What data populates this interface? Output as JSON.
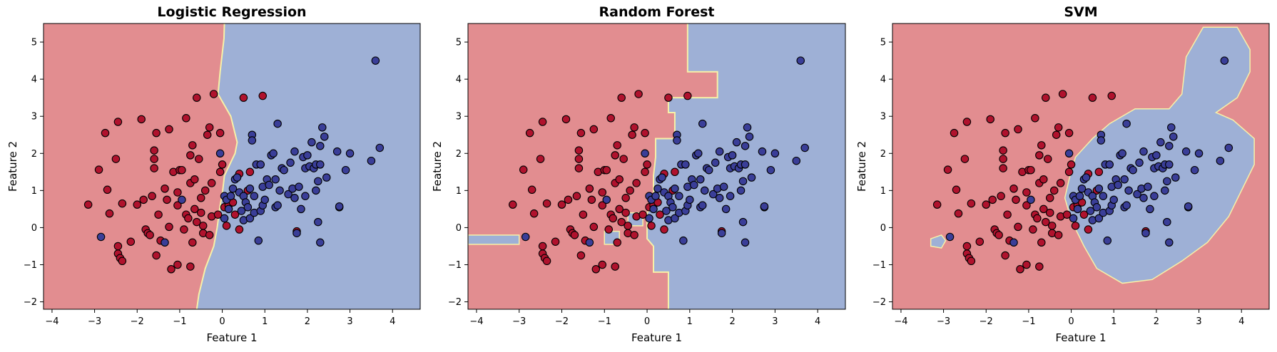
{
  "colors": {
    "class_0_region": "#e28d90",
    "class_1_region": "#9eb0d6",
    "class_0_point": "#b0122d",
    "class_1_point": "#3a3e98",
    "boundary_tint": "#f7f1a8",
    "point_edge": "#000000"
  },
  "chart_data": [
    {
      "type": "scatter",
      "title": "Logistic Regression",
      "xlabel": "Feature 1",
      "ylabel": "Feature 2",
      "xlim": [
        -4.2,
        4.65
      ],
      "ylim": [
        -2.2,
        5.5
      ],
      "xticks": [
        -4,
        -3,
        -2,
        -1,
        0,
        1,
        2,
        3,
        4
      ],
      "yticks": [
        -2,
        -1,
        0,
        1,
        2,
        3,
        4,
        5
      ],
      "grid": false,
      "boundary": [
        [
          0.05,
          5.5
        ],
        [
          0.04,
          5.1
        ],
        [
          -0.05,
          4.2
        ],
        [
          -0.1,
          3.6
        ],
        [
          0.2,
          3.0
        ],
        [
          0.35,
          2.3
        ],
        [
          0.3,
          2.0
        ],
        [
          0.05,
          1.4
        ],
        [
          0.0,
          0.9
        ],
        [
          -0.05,
          0.6
        ],
        [
          -0.12,
          0.0
        ],
        [
          -0.2,
          -0.5
        ],
        [
          -0.4,
          -1.1
        ],
        [
          -0.55,
          -1.8
        ],
        [
          -0.6,
          -2.2
        ]
      ],
      "blue_islands": []
    },
    {
      "type": "scatter",
      "title": "Random Forest",
      "xlabel": "Feature 1",
      "ylabel": "Feature 2",
      "xlim": [
        -4.2,
        4.65
      ],
      "ylim": [
        -2.2,
        5.5
      ],
      "xticks": [
        -4,
        -3,
        -2,
        -1,
        0,
        1,
        2,
        3,
        4
      ],
      "yticks": [
        -2,
        -1,
        0,
        1,
        2,
        3,
        4,
        5
      ],
      "grid": false,
      "boundary": [
        [
          0.95,
          5.5
        ],
        [
          0.95,
          4.2
        ],
        [
          1.65,
          4.2
        ],
        [
          1.65,
          3.5
        ],
        [
          0.5,
          3.5
        ],
        [
          0.5,
          3.1
        ],
        [
          0.65,
          3.1
        ],
        [
          0.65,
          2.4
        ],
        [
          0.2,
          2.4
        ],
        [
          0.2,
          1.9
        ],
        [
          0.15,
          1.4
        ],
        [
          0.15,
          0.6
        ],
        [
          0.0,
          0.4
        ],
        [
          0.0,
          -0.3
        ],
        [
          0.15,
          -0.5
        ],
        [
          0.15,
          -1.2
        ],
        [
          0.5,
          -1.2
        ],
        [
          0.5,
          -2.2
        ]
      ],
      "blue_islands": [
        [
          [
            -4.2,
            -0.2
          ],
          [
            -3.0,
            -0.2
          ],
          [
            -3.0,
            -0.45
          ],
          [
            -4.2,
            -0.45
          ]
        ],
        [
          [
            -1.0,
            -0.1
          ],
          [
            -0.65,
            -0.1
          ],
          [
            -0.65,
            -0.45
          ],
          [
            -1.0,
            -0.45
          ]
        ],
        [
          [
            -0.45,
            0.4
          ],
          [
            -0.1,
            0.4
          ],
          [
            -0.1,
            0.05
          ],
          [
            -0.45,
            0.05
          ]
        ]
      ]
    },
    {
      "type": "scatter",
      "title": "SVM",
      "xlabel": "Feature 1",
      "ylabel": "Feature 2",
      "xlim": [
        -4.2,
        4.65
      ],
      "ylim": [
        -2.2,
        5.5
      ],
      "xticks": [
        -4,
        -3,
        -2,
        -1,
        0,
        1,
        2,
        3,
        4
      ],
      "yticks": [
        -2,
        -1,
        0,
        1,
        2,
        3,
        4,
        5
      ],
      "grid": false,
      "boundary": [],
      "blue_islands": [
        [
          [
            0.1,
            1.9
          ],
          [
            0.5,
            2.4
          ],
          [
            0.9,
            2.8
          ],
          [
            1.5,
            3.2
          ],
          [
            2.3,
            3.2
          ],
          [
            2.6,
            3.6
          ],
          [
            2.7,
            4.6
          ],
          [
            3.1,
            5.4
          ],
          [
            3.9,
            5.4
          ],
          [
            4.2,
            4.8
          ],
          [
            4.2,
            4.2
          ],
          [
            3.9,
            3.5
          ],
          [
            3.4,
            3.1
          ],
          [
            3.8,
            2.9
          ],
          [
            4.3,
            2.4
          ],
          [
            4.3,
            1.7
          ],
          [
            4.0,
            1.0
          ],
          [
            3.7,
            0.3
          ],
          [
            3.2,
            -0.4
          ],
          [
            2.6,
            -0.9
          ],
          [
            1.9,
            -1.4
          ],
          [
            1.2,
            -1.5
          ],
          [
            0.6,
            -1.1
          ],
          [
            0.3,
            -0.5
          ],
          [
            0.0,
            0.2
          ],
          [
            -0.15,
            0.8
          ],
          [
            -0.05,
            1.3
          ]
        ],
        [
          [
            -3.3,
            -0.3
          ],
          [
            -3.05,
            -0.2
          ],
          [
            -2.95,
            -0.35
          ],
          [
            -3.05,
            -0.55
          ],
          [
            -3.3,
            -0.5
          ]
        ]
      ]
    }
  ],
  "points": {
    "class_0": [
      [
        -3.15,
        0.62
      ],
      [
        -2.9,
        1.56
      ],
      [
        -2.75,
        2.55
      ],
      [
        -2.7,
        1.02
      ],
      [
        -2.65,
        0.38
      ],
      [
        -2.5,
        1.85
      ],
      [
        -2.45,
        2.85
      ],
      [
        -2.35,
        0.65
      ],
      [
        -2.45,
        -0.7
      ],
      [
        -2.4,
        -0.82
      ],
      [
        -2.35,
        -0.9
      ],
      [
        -2.45,
        -0.5
      ],
      [
        -2.15,
        -0.38
      ],
      [
        -2.0,
        0.62
      ],
      [
        -1.9,
        2.92
      ],
      [
        -1.85,
        0.75
      ],
      [
        -1.8,
        -0.05
      ],
      [
        -1.75,
        -0.15
      ],
      [
        -1.7,
        -0.2
      ],
      [
        -1.65,
        0.85
      ],
      [
        -1.6,
        1.6
      ],
      [
        -1.6,
        2.08
      ],
      [
        -1.6,
        1.85
      ],
      [
        -1.55,
        2.55
      ],
      [
        -1.55,
        -0.75
      ],
      [
        -1.5,
        0.35
      ],
      [
        -1.45,
        -0.35
      ],
      [
        -1.35,
        1.05
      ],
      [
        -1.3,
        0.75
      ],
      [
        -1.25,
        0.02
      ],
      [
        -1.25,
        2.65
      ],
      [
        -1.2,
        -1.12
      ],
      [
        -1.15,
        1.5
      ],
      [
        -1.05,
        0.6
      ],
      [
        -1.05,
        0.95
      ],
      [
        -1.05,
        -1.0
      ],
      [
        -1.0,
        1.55
      ],
      [
        -0.95,
        1.55
      ],
      [
        -0.9,
        -0.05
      ],
      [
        -0.85,
        2.95
      ],
      [
        -0.85,
        0.35
      ],
      [
        -0.8,
        0.25
      ],
      [
        -0.75,
        -1.05
      ],
      [
        -0.75,
        1.2
      ],
      [
        -0.75,
        1.95
      ],
      [
        -0.7,
        2.22
      ],
      [
        -0.7,
        -0.4
      ],
      [
        -0.65,
        0.5
      ],
      [
        -0.65,
        1.3
      ],
      [
        -0.6,
        0.15
      ],
      [
        -0.6,
        3.5
      ],
      [
        -0.55,
        1.85
      ],
      [
        -0.5,
        0.8
      ],
      [
        -0.5,
        0.4
      ],
      [
        -0.45,
        0.05
      ],
      [
        -0.45,
        -0.15
      ],
      [
        -0.4,
        1.0
      ],
      [
        -0.35,
        2.5
      ],
      [
        -0.3,
        2.7
      ],
      [
        -0.3,
        -0.2
      ],
      [
        -0.2,
        3.6
      ],
      [
        -0.25,
        1.2
      ],
      [
        -0.25,
        0.3
      ],
      [
        -0.1,
        0.35
      ],
      [
        -0.05,
        1.5
      ],
      [
        0.0,
        1.7
      ],
      [
        -0.05,
        2.55
      ],
      [
        0.05,
        0.55
      ],
      [
        0.1,
        0.05
      ],
      [
        0.15,
        0.6
      ],
      [
        0.25,
        0.68
      ],
      [
        0.3,
        0.35
      ],
      [
        0.4,
        1.45
      ],
      [
        0.4,
        -0.05
      ],
      [
        0.5,
        3.5
      ],
      [
        0.6,
        1.0
      ],
      [
        0.65,
        1.5
      ],
      [
        0.95,
        3.55
      ],
      [
        1.75,
        -0.1
      ]
    ],
    "class_1": [
      [
        -2.85,
        -0.25
      ],
      [
        -1.35,
        -0.4
      ],
      [
        -0.95,
        0.75
      ],
      [
        -0.05,
        2.0
      ],
      [
        0.05,
        0.85
      ],
      [
        0.05,
        0.25
      ],
      [
        0.1,
        0.75
      ],
      [
        0.15,
        0.5
      ],
      [
        0.2,
        0.85
      ],
      [
        0.25,
        1.05
      ],
      [
        0.3,
        1.3
      ],
      [
        0.35,
        1.35
      ],
      [
        0.4,
        0.95
      ],
      [
        0.45,
        0.45
      ],
      [
        0.5,
        0.2
      ],
      [
        0.5,
        0.85
      ],
      [
        0.55,
        0.68
      ],
      [
        0.6,
        0.55
      ],
      [
        0.65,
        0.25
      ],
      [
        0.65,
        1.05
      ],
      [
        0.7,
        2.5
      ],
      [
        0.7,
        2.35
      ],
      [
        0.75,
        0.4
      ],
      [
        0.75,
        0.85
      ],
      [
        0.8,
        1.7
      ],
      [
        0.85,
        -0.35
      ],
      [
        0.9,
        1.7
      ],
      [
        0.9,
        0.45
      ],
      [
        0.95,
        0.6
      ],
      [
        0.95,
        1.1
      ],
      [
        1.0,
        0.75
      ],
      [
        1.05,
        1.3
      ],
      [
        1.1,
        1.15
      ],
      [
        1.15,
        1.95
      ],
      [
        1.2,
        2.0
      ],
      [
        1.25,
        1.3
      ],
      [
        1.25,
        0.55
      ],
      [
        1.3,
        0.6
      ],
      [
        1.3,
        2.8
      ],
      [
        1.35,
        1.0
      ],
      [
        1.4,
        1.6
      ],
      [
        1.45,
        1.55
      ],
      [
        1.55,
        0.9
      ],
      [
        1.6,
        1.75
      ],
      [
        1.65,
        1.05
      ],
      [
        1.7,
        0.8
      ],
      [
        1.7,
        2.05
      ],
      [
        1.75,
        -0.15
      ],
      [
        1.8,
        1.1
      ],
      [
        1.85,
        0.5
      ],
      [
        1.9,
        1.9
      ],
      [
        1.95,
        0.85
      ],
      [
        1.95,
        1.6
      ],
      [
        2.0,
        1.95
      ],
      [
        2.05,
        1.65
      ],
      [
        2.1,
        2.3
      ],
      [
        2.15,
        1.6
      ],
      [
        2.2,
        1.7
      ],
      [
        2.2,
        1.0
      ],
      [
        2.25,
        0.15
      ],
      [
        2.25,
        1.25
      ],
      [
        2.3,
        1.7
      ],
      [
        2.3,
        2.2
      ],
      [
        2.3,
        -0.4
      ],
      [
        2.35,
        2.7
      ],
      [
        2.4,
        2.45
      ],
      [
        2.45,
        1.35
      ],
      [
        2.7,
        2.05
      ],
      [
        2.75,
        0.55
      ],
      [
        2.75,
        0.57
      ],
      [
        2.9,
        1.55
      ],
      [
        3.0,
        2.0
      ],
      [
        3.5,
        1.8
      ],
      [
        3.6,
        4.5
      ],
      [
        3.7,
        2.15
      ]
    ]
  }
}
